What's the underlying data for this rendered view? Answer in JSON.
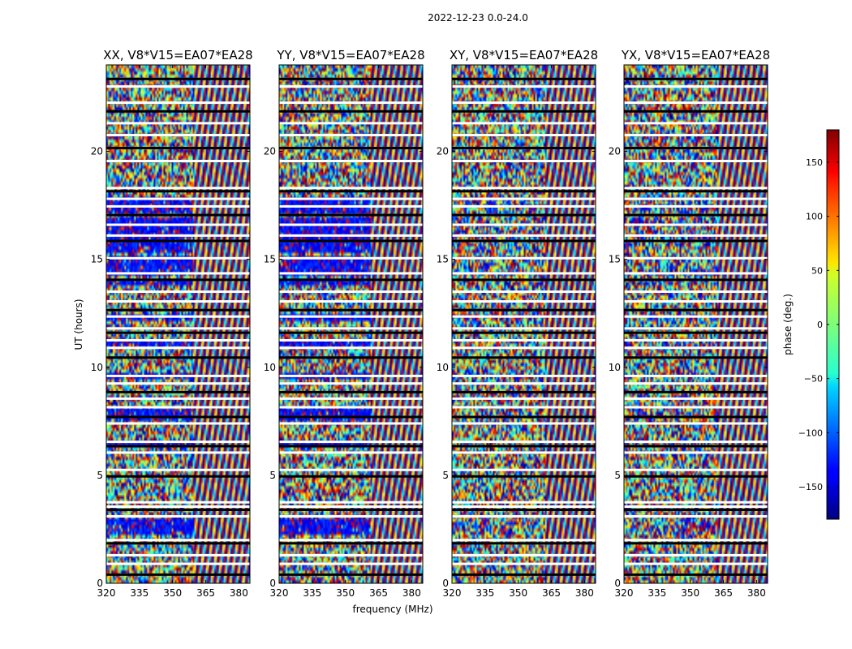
{
  "chart_data": {
    "type": "heatmap",
    "suptitle": "2022-12-23 0.0-24.0",
    "xlabel": "frequency (MHz)",
    "ylabel": "UT (hours)",
    "xlim": [
      320,
      385
    ],
    "ylim": [
      0,
      24
    ],
    "x_ticks": [
      "320",
      "335",
      "350",
      "365",
      "380"
    ],
    "y_ticks": [
      "0",
      "5",
      "10",
      "15",
      "20"
    ],
    "panels": [
      {
        "title": "XX, V8*V15=EA07*EA28",
        "rfi_onset_mhz": 359,
        "blue_band_strength": 0.85
      },
      {
        "title": "YY, V8*V15=EA07*EA28",
        "rfi_onset_mhz": 361,
        "blue_band_strength": 0.9
      },
      {
        "title": "XY, V8*V15=EA07*EA28",
        "rfi_onset_mhz": 362,
        "blue_band_strength": 0.1
      },
      {
        "title": "YX, V8*V15=EA07*EA28",
        "rfi_onset_mhz": 362,
        "blue_band_strength": 0.15
      }
    ],
    "colorbar": {
      "label": "phase (deg.)",
      "range": [
        -180,
        180
      ],
      "ticks": [
        "150",
        "100",
        "50",
        "0",
        "−50",
        "−100",
        "−150"
      ],
      "tick_values": [
        150,
        100,
        50,
        0,
        -50,
        -100,
        -150
      ],
      "colormap": "jet"
    },
    "flagged_hours": [
      0.4,
      0.9,
      1.3,
      1.85,
      2.0,
      3.1,
      3.4,
      3.55,
      3.75,
      4.95,
      5.25,
      6.05,
      6.35,
      6.55,
      7.4,
      7.7,
      8.15,
      8.55,
      8.85,
      9.25,
      9.6,
      10.45,
      10.9,
      11.25,
      11.6,
      11.8,
      12.35,
      12.65,
      13.05,
      13.5,
      14.05,
      14.35,
      15.05,
      15.85,
      16.1,
      16.6,
      17.05,
      17.45,
      17.8,
      18.15,
      18.3,
      19.55,
      20.15,
      20.75,
      21.3,
      21.85,
      22.25,
      23.0,
      23.35
    ],
    "blue_band_hours": [
      [
        2.3,
        3.0
      ],
      [
        6.25,
        6.6
      ],
      [
        7.5,
        8.1
      ],
      [
        9.4,
        9.75
      ],
      [
        10.95,
        11.3
      ],
      [
        12.2,
        12.45
      ],
      [
        13.8,
        14.1
      ],
      [
        14.2,
        15.2
      ],
      [
        15.35,
        16.2
      ],
      [
        16.2,
        17.0
      ],
      [
        17.05,
        17.9
      ]
    ]
  }
}
